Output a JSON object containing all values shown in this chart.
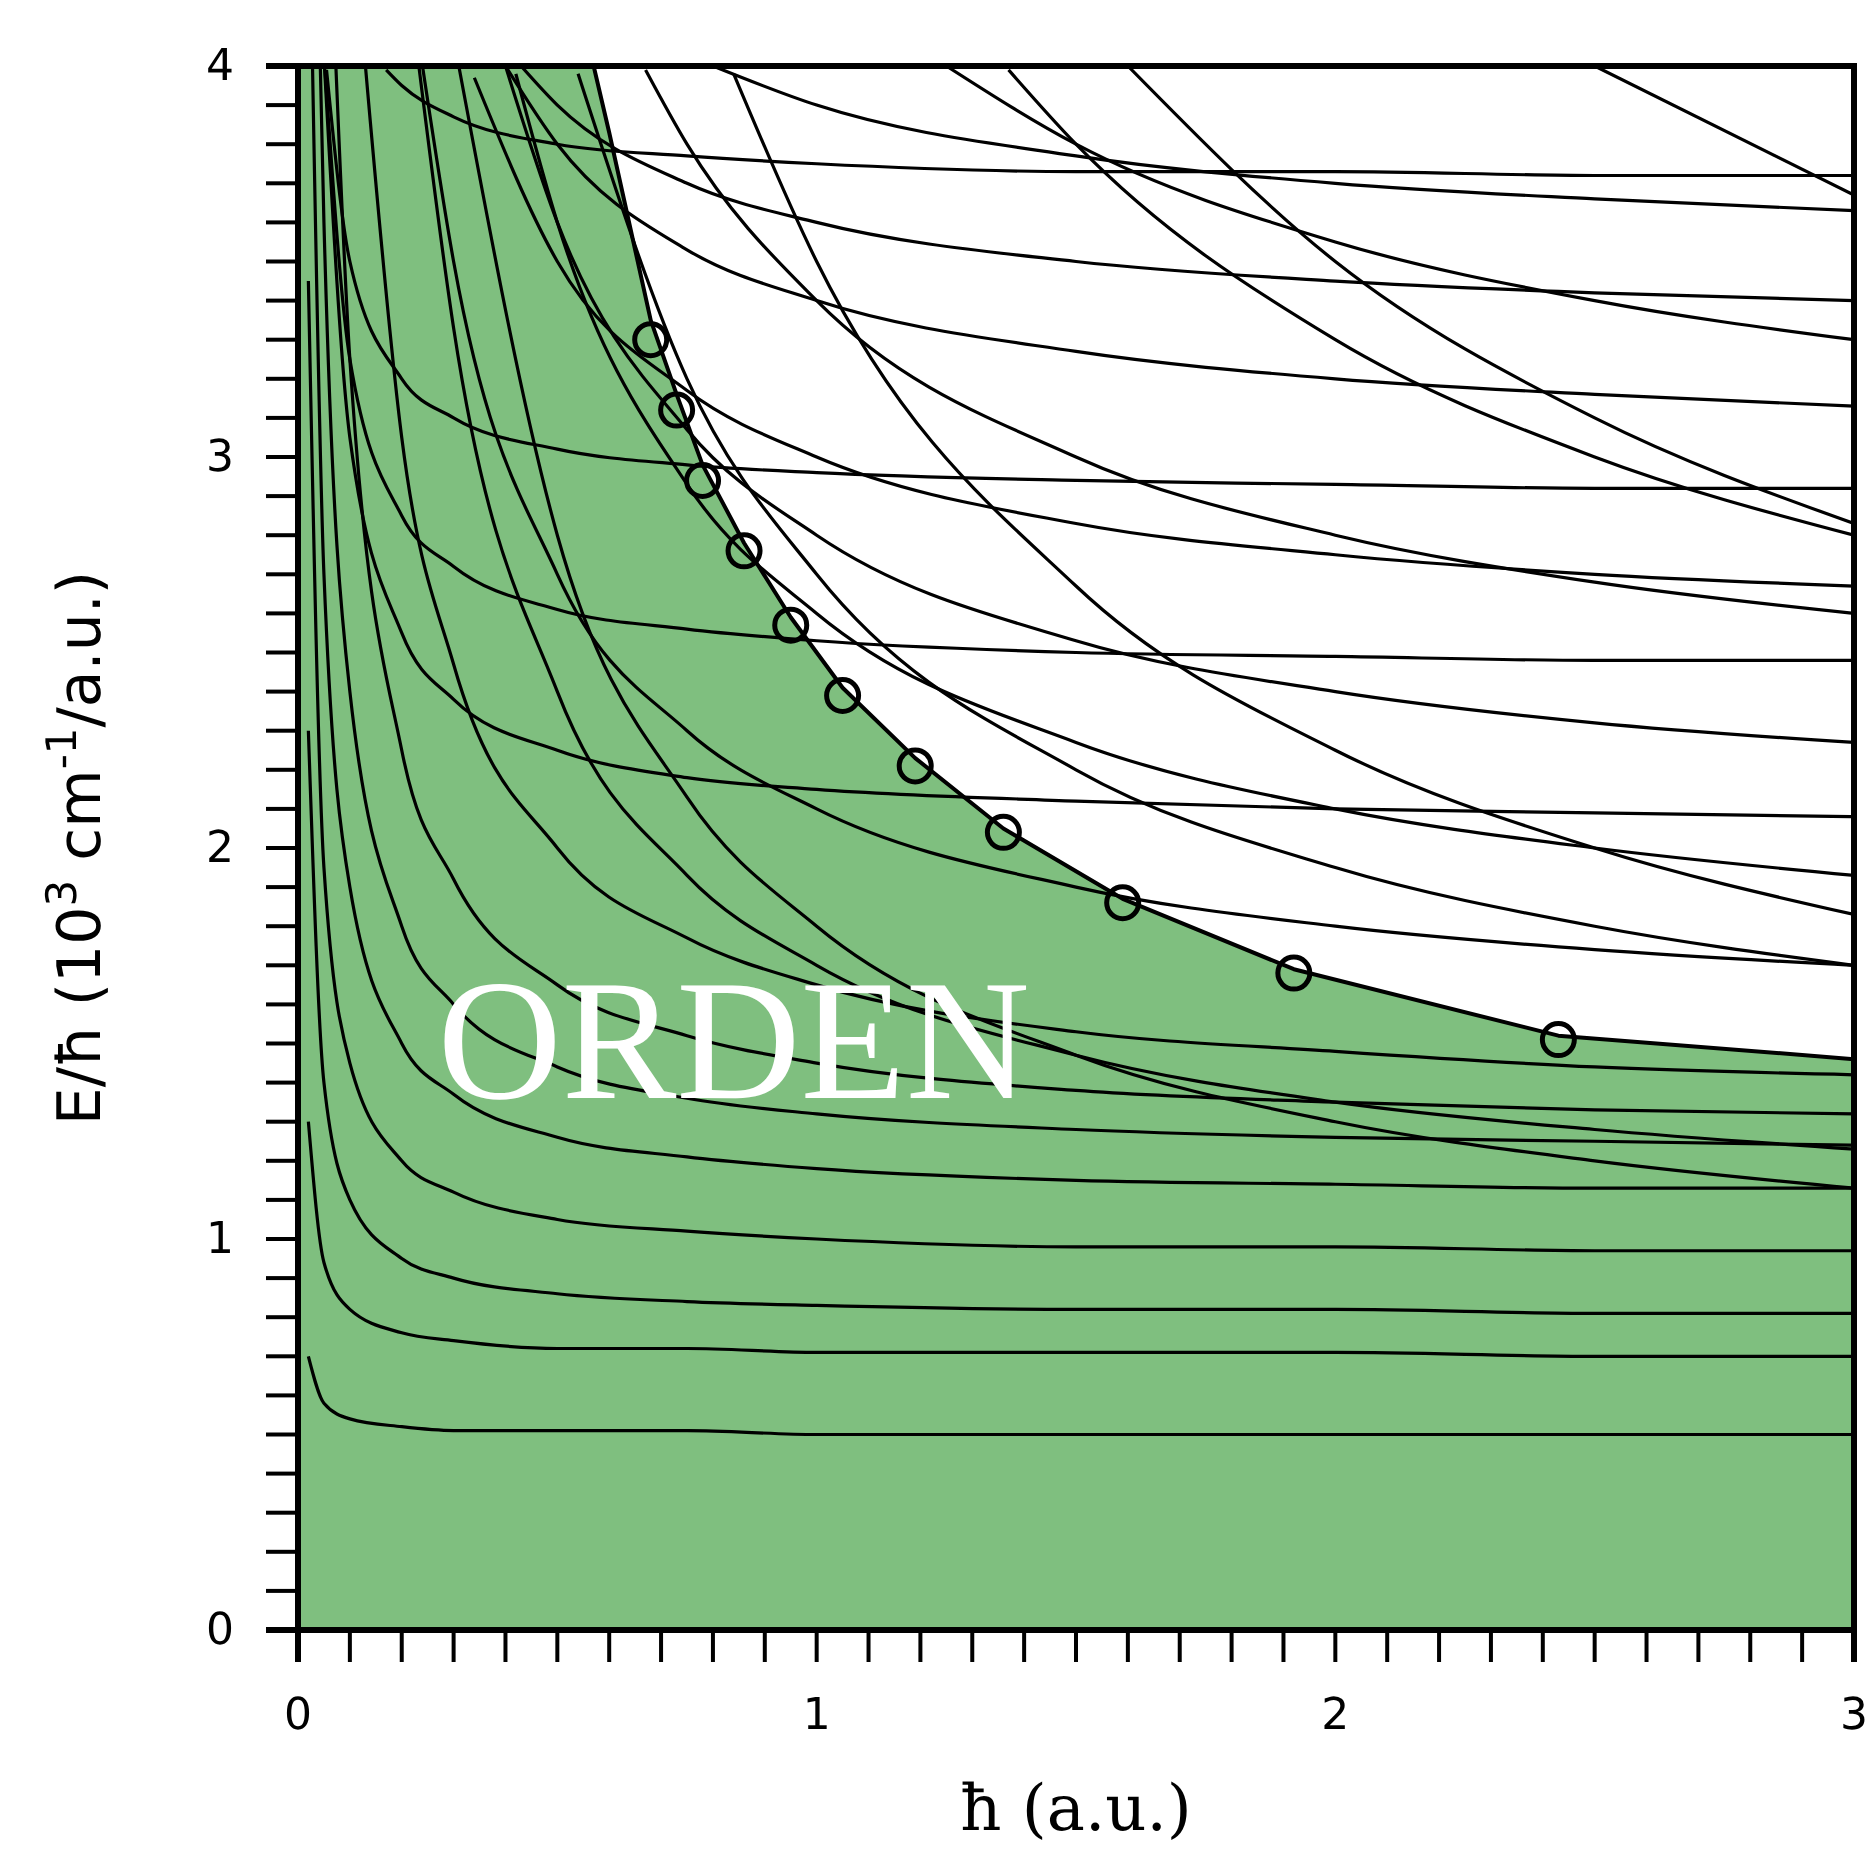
{
  "chart_data": {
    "type": "line",
    "xlabel": "ħ (a.u.)",
    "ylabel": "E/ħ (10$^{3}$ cm$^{-1}$/a.u.)",
    "annotations": [
      "ORDEN"
    ],
    "xlim": [
      0,
      3
    ],
    "ylim": [
      0,
      4
    ],
    "xticks": [
      0,
      {
        "value": 0.1,
        "label": null
      },
      {
        "value": 0.2,
        "label": null
      },
      {
        "value": 0.3,
        "label": null
      },
      {
        "value": 0.4,
        "label": null
      },
      {
        "value": 0.5,
        "label": null
      },
      {
        "value": 0.6,
        "label": null
      },
      {
        "value": 0.7,
        "label": null
      },
      {
        "value": 0.8,
        "label": null
      },
      {
        "value": 0.9,
        "label": null
      },
      1,
      {
        "value": 1.1,
        "label": null
      },
      {
        "value": 1.2,
        "label": null
      },
      {
        "value": 1.3,
        "label": null
      },
      {
        "value": 1.4,
        "label": null
      },
      {
        "value": 1.5,
        "label": null
      },
      {
        "value": 1.6,
        "label": null
      },
      {
        "value": 1.7,
        "label": null
      },
      {
        "value": 1.8,
        "label": null
      },
      {
        "value": 1.9,
        "label": null
      },
      2,
      {
        "value": 2.1,
        "label": null
      },
      {
        "value": 2.2,
        "label": null
      },
      {
        "value": 2.3,
        "label": null
      },
      {
        "value": 2.4,
        "label": null
      },
      {
        "value": 2.5,
        "label": null
      },
      {
        "value": 2.6,
        "label": null
      },
      {
        "value": 2.7,
        "label": null
      },
      {
        "value": 2.8,
        "label": null
      },
      {
        "value": 2.9,
        "label": null
      },
      3
    ],
    "yticks": [
      0,
      {
        "value": 0.1,
        "label": null
      },
      {
        "value": 0.2,
        "label": null
      },
      {
        "value": 0.3,
        "label": null
      },
      {
        "value": 0.4,
        "label": null
      },
      {
        "value": 0.5,
        "label": null
      },
      {
        "value": 0.6,
        "label": null
      },
      {
        "value": 0.7,
        "label": null
      },
      {
        "value": 0.8,
        "label": null
      },
      {
        "value": 0.9,
        "label": null
      },
      1,
      {
        "value": 1.1,
        "label": null
      },
      {
        "value": 1.2,
        "label": null
      },
      {
        "value": 1.3,
        "label": null
      },
      {
        "value": 1.4,
        "label": null
      },
      {
        "value": 1.5,
        "label": null
      },
      {
        "value": 1.6,
        "label": null
      },
      {
        "value": 1.7,
        "label": null
      },
      {
        "value": 1.8,
        "label": null
      },
      {
        "value": 1.9,
        "label": null
      },
      2,
      {
        "value": 2.1,
        "label": null
      },
      {
        "value": 2.2,
        "label": null
      },
      {
        "value": 2.3,
        "label": null
      },
      {
        "value": 2.4,
        "label": null
      },
      {
        "value": 2.5,
        "label": null
      },
      {
        "value": 2.6,
        "label": null
      },
      {
        "value": 2.7,
        "label": null
      },
      {
        "value": 2.8,
        "label": null
      },
      {
        "value": 2.9,
        "label": null
      },
      3,
      {
        "value": 3.1,
        "label": null
      },
      {
        "value": 3.2,
        "label": null
      },
      {
        "value": 3.3,
        "label": null
      },
      {
        "value": 3.4,
        "label": null
      },
      {
        "value": 3.5,
        "label": null
      },
      {
        "value": 3.6,
        "label": null
      },
      {
        "value": 3.7,
        "label": null
      },
      {
        "value": 3.8,
        "label": null
      },
      {
        "value": 3.9,
        "label": null
      },
      4
    ],
    "grid": false,
    "marker": "none",
    "line_style": "solid",
    "series": [
      {
        "type": "area",
        "color": "#7fbf7f",
        "x": [
          0,
          0.57,
          0.6,
          0.68,
          0.73,
          0.78,
          0.86,
          0.95,
          1.05,
          1.19,
          1.36,
          1.59,
          1.92,
          2.43,
          3
        ],
        "values": [
          4,
          4,
          3.83,
          3.35,
          3.16,
          2.98,
          2.78,
          2.59,
          2.41,
          2.23,
          2.05,
          1.87,
          1.69,
          1.52,
          1.46
        ]
      },
      {
        "color": "#000000",
        "x": [
          0.02,
          0.05,
          0.1,
          0.2,
          0.3,
          0.5,
          0.75,
          1,
          1.5,
          2,
          2.5,
          3
        ],
        "values": [
          0.7,
          0.58,
          0.54,
          0.52,
          0.51,
          0.51,
          0.51,
          0.5,
          0.5,
          0.5,
          0.5,
          0.5
        ]
      },
      {
        "color": "#000000",
        "x": [
          0.02,
          0.05,
          0.1,
          0.2,
          0.3,
          0.5,
          0.75,
          1,
          1.5,
          2,
          2.5,
          3
        ],
        "values": [
          1.3,
          0.94,
          0.82,
          0.76,
          0.74,
          0.72,
          0.72,
          0.71,
          0.71,
          0.71,
          0.7,
          0.7
        ]
      },
      {
        "color": "#000000",
        "x": [
          0.02,
          0.05,
          0.1,
          0.2,
          0.3,
          0.5,
          0.75,
          1,
          1.5,
          2,
          2.5,
          3
        ],
        "values": [
          2.3,
          1.4,
          1.1,
          0.95,
          0.9,
          0.86,
          0.84,
          0.83,
          0.82,
          0.82,
          0.81,
          0.81
        ]
      },
      {
        "color": "#000000",
        "x": [
          0.02,
          0.05,
          0.1,
          0.2,
          0.3,
          0.5,
          0.75,
          1,
          1.5,
          2,
          2.5,
          3
        ],
        "values": [
          3.45,
          1.95,
          1.45,
          1.2,
          1.12,
          1.05,
          1.02,
          1.0,
          0.98,
          0.98,
          0.97,
          0.97
        ]
      },
      {
        "color": "#000000",
        "x": [
          0.028,
          0.05,
          0.1,
          0.2,
          0.3,
          0.5,
          0.75,
          1,
          1.5,
          2,
          2.5,
          3
        ],
        "values": [
          4,
          2.7,
          1.9,
          1.5,
          1.37,
          1.26,
          1.21,
          1.18,
          1.15,
          1.14,
          1.13,
          1.13
        ]
      },
      {
        "color": "#000000",
        "x": [
          0.043,
          0.05,
          0.1,
          0.2,
          0.3,
          0.5,
          0.75,
          1,
          1.5,
          2,
          2.5,
          3
        ],
        "values": [
          4,
          3.6,
          2.4,
          1.8,
          1.6,
          1.44,
          1.36,
          1.32,
          1.28,
          1.26,
          1.25,
          1.24
        ]
      },
      {
        "color": "#000000",
        "x": [
          0.073,
          0.1,
          0.2,
          0.3,
          0.5,
          0.75,
          1,
          1.5,
          2,
          2.5,
          3
        ],
        "values": [
          4,
          3.25,
          2.25,
          1.92,
          1.65,
          1.52,
          1.45,
          1.38,
          1.35,
          1.33,
          1.32
        ]
      },
      {
        "color": "#000000",
        "x": [
          0.13,
          0.2,
          0.3,
          0.5,
          0.75,
          1,
          1.5,
          2,
          2.5,
          3
        ],
        "values": [
          4,
          3.05,
          2.47,
          2.0,
          1.77,
          1.65,
          1.53,
          1.48,
          1.44,
          1.42
        ]
      },
      {
        "color": "#000000",
        "x": [
          0.233,
          0.3,
          0.5,
          0.75,
          1,
          1.5,
          2,
          2.5,
          3
        ],
        "values": [
          4,
          3.33,
          2.4,
          1.93,
          1.7,
          1.47,
          1.35,
          1.28,
          1.23
        ]
      },
      {
        "color": "#000000",
        "x": [
          0.31,
          0.5,
          0.75,
          1,
          1.5,
          2,
          2.5,
          3
        ],
        "values": [
          4,
          2.8,
          2.13,
          1.8,
          1.47,
          1.3,
          1.2,
          1.13
        ]
      },
      {
        "color": "#000000",
        "x": [
          0.24,
          0.3,
          0.5,
          0.75,
          1,
          1.5,
          2,
          2.5,
          3
        ],
        "values": [
          4,
          3.5,
          2.7,
          2.3,
          2.1,
          1.9,
          1.8,
          1.74,
          1.7
        ]
      },
      {
        "color": "#000000",
        "x": [
          0.42,
          0.5,
          0.75,
          1,
          1.5,
          2,
          2.5,
          3
        ],
        "values": [
          3.98,
          3.6,
          2.93,
          2.6,
          2.27,
          2.1,
          2.0,
          1.93
        ]
      },
      {
        "color": "#000000",
        "x": [
          0.54,
          0.75,
          1,
          1.5,
          2,
          2.5,
          3
        ],
        "values": [
          3.98,
          3.2,
          2.7,
          2.2,
          1.95,
          1.8,
          1.7
        ]
      },
      {
        "color": "#000000",
        "x": [
          0.4,
          0.5,
          0.75,
          1,
          1.5,
          2,
          2.5,
          3
        ],
        "values": [
          4,
          3.6,
          3.07,
          2.8,
          2.53,
          2.4,
          2.32,
          2.27
        ]
      },
      {
        "color": "#000000",
        "x": [
          0.84,
          1,
          1.5,
          2,
          2.5,
          3
        ],
        "values": [
          3.98,
          3.5,
          2.67,
          2.25,
          2.0,
          1.83
        ]
      },
      {
        "color": "#000000",
        "x": [
          0.67,
          0.75,
          1,
          1.5,
          2,
          2.5,
          3
        ],
        "values": [
          3.99,
          3.8,
          3.4,
          3.0,
          2.8,
          2.68,
          2.6
        ]
      },
      {
        "color": "#000000",
        "x": [
          0.34,
          0.5,
          0.75,
          1,
          1.5,
          2,
          2.5,
          3
        ],
        "values": [
          3.97,
          3.5,
          3.17,
          3.0,
          2.83,
          2.75,
          2.7,
          2.67
        ]
      },
      {
        "color": "#000000",
        "x": [
          1.37,
          1.5,
          2,
          2.5,
          3
        ],
        "values": [
          3.99,
          3.8,
          3.3,
          3.0,
          2.8
        ]
      },
      {
        "color": "#000000",
        "x": [
          0.4,
          0.5,
          0.75,
          1,
          1.5,
          2,
          2.5,
          3
        ],
        "values": [
          4,
          3.8,
          3.53,
          3.4,
          3.27,
          3.2,
          3.16,
          3.13
        ]
      },
      {
        "color": "#000000",
        "x": [
          1.6,
          2,
          2.5,
          3
        ],
        "values": [
          4,
          3.5,
          3.1,
          2.83
        ]
      },
      {
        "color": "#000000",
        "x": [
          0.43,
          0.5,
          0.75,
          1,
          1.5,
          2,
          2.5,
          3
        ],
        "values": [
          4,
          3.9,
          3.7,
          3.6,
          3.5,
          3.45,
          3.42,
          3.4
        ]
      },
      {
        "color": "#000000",
        "x": [
          1.25,
          1.5,
          2,
          2.5,
          3
        ],
        "values": [
          4,
          3.8,
          3.55,
          3.4,
          3.3
        ]
      },
      {
        "color": "#000000",
        "x": [
          2.5,
          3
        ],
        "values": [
          4,
          3.67
        ]
      },
      {
        "color": "#000000",
        "x": [
          0.8,
          1,
          1.5,
          2,
          2.5,
          3
        ],
        "values": [
          4,
          3.9,
          3.77,
          3.7,
          3.66,
          3.63
        ]
      },
      {
        "color": "#000000",
        "x": [
          0.051,
          0.1,
          0.2,
          0.3,
          0.5,
          0.75,
          1,
          1.5,
          2,
          2.5,
          3
        ],
        "values": [
          4,
          3.05,
          2.55,
          2.38,
          2.25,
          2.18,
          2.15,
          2.12,
          2.1,
          2.09,
          2.08
        ]
      },
      {
        "color": "#000000",
        "x": [
          0.052,
          0.1,
          0.2,
          0.3,
          0.5,
          0.75,
          1,
          1.5,
          2,
          2.5,
          3
        ],
        "values": [
          3.99,
          3.25,
          2.85,
          2.72,
          2.61,
          2.56,
          2.53,
          2.5,
          2.49,
          2.48,
          2.48
        ]
      },
      {
        "color": "#000000",
        "x": [
          0.055,
          0.1,
          0.2,
          0.3,
          0.5,
          0.75,
          1,
          1.5,
          2,
          2.5,
          3
        ],
        "values": [
          3.99,
          3.5,
          3.2,
          3.1,
          3.02,
          2.98,
          2.96,
          2.94,
          2.93,
          2.92,
          2.92
        ]
      },
      {
        "color": "#000000",
        "x": [
          0.17,
          0.2,
          0.3,
          0.5,
          0.75,
          1,
          1.5,
          2,
          2.5,
          3
        ],
        "values": [
          3.99,
          3.95,
          3.87,
          3.8,
          3.77,
          3.75,
          3.73,
          3.73,
          3.72,
          3.72
        ]
      },
      {
        "type": "scatter",
        "marker": "circle",
        "color": "#000000",
        "x": [
          0.68,
          0.73,
          0.78,
          0.86,
          0.95,
          1.05,
          1.19,
          1.36,
          1.59,
          1.92,
          2.43
        ],
        "values": [
          3.3,
          3.12,
          2.94,
          2.76,
          2.57,
          2.39,
          2.21,
          2.04,
          1.86,
          1.68,
          1.51
        ]
      }
    ]
  }
}
